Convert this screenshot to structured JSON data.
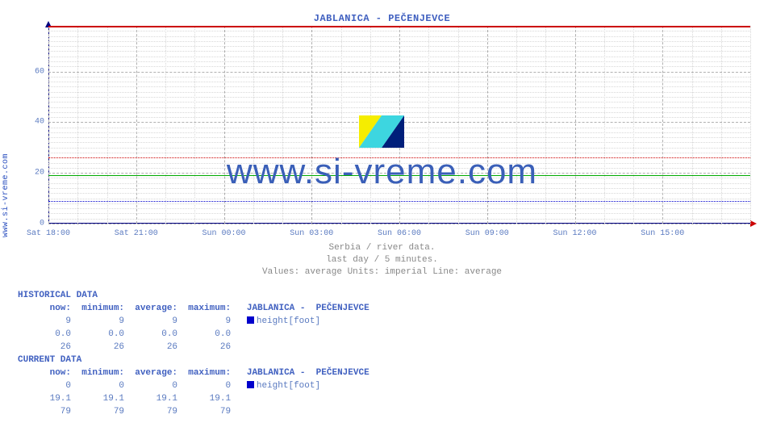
{
  "site_url_vertical": "www.si-vreme.com",
  "title": "JABLANICA -  PEČENJEVCE",
  "watermark_text": "www.si-vreme.com",
  "chart": {
    "type": "line",
    "background_color": "#ffffff",
    "axis_color": "#000080",
    "grid_major_color": "#b0b0b0",
    "grid_minor_color": "#d8d8d8",
    "tick_label_color": "#5a7ac0",
    "ylim": [
      0,
      78
    ],
    "yticks": [
      0,
      20,
      40,
      60
    ],
    "y_minor_step": 2,
    "xticks": [
      "Sat 18:00",
      "Sat 21:00",
      "Sun 00:00",
      "Sun 03:00",
      "Sun 06:00",
      "Sun 09:00",
      "Sun 12:00",
      "Sun 15:00"
    ],
    "x_minor_per_major": 3,
    "lines": [
      {
        "value": 19,
        "color": "#00aa00",
        "width": 1,
        "label": "average-green"
      },
      {
        "value": 9,
        "color": "#0000cc",
        "width": 1,
        "dash": "2,2",
        "label": "dotted-blue-9"
      },
      {
        "value": 26,
        "color": "#cc0000",
        "width": 1,
        "dash": "2,2",
        "label": "dotted-red-26"
      },
      {
        "value": 78,
        "color": "#cc0000",
        "width": 2,
        "label": "solid-red-top"
      }
    ]
  },
  "subtitle": {
    "line1": "Serbia / river data.",
    "line2": "last day / 5 minutes.",
    "line3": "Values: average  Units: imperial  Line: average"
  },
  "tables": {
    "historical_title": "HISTORICAL DATA",
    "current_title": "CURRENT DATA",
    "col_now": "now:",
    "col_min": "minimum:",
    "col_avg": "average:",
    "col_max": "maximum:",
    "series_label": "JABLANICA -  PEČENJEVCE",
    "unit_label": "height[foot]",
    "historical": {
      "r1": [
        "9",
        "9",
        "9",
        "9"
      ],
      "r2": [
        "0.0",
        "0.0",
        "0.0",
        "0.0"
      ],
      "r3": [
        "26",
        "26",
        "26",
        "26"
      ]
    },
    "current": {
      "r1": [
        "0",
        "0",
        "0",
        "0"
      ],
      "r2": [
        "19.1",
        "19.1",
        "19.1",
        "19.1"
      ],
      "r3": [
        "79",
        "79",
        "79",
        "79"
      ]
    }
  },
  "logo_colors": {
    "yellow": "#f5ed00",
    "darkblue": "#001f7a",
    "cyan": "#3dd6e0"
  }
}
